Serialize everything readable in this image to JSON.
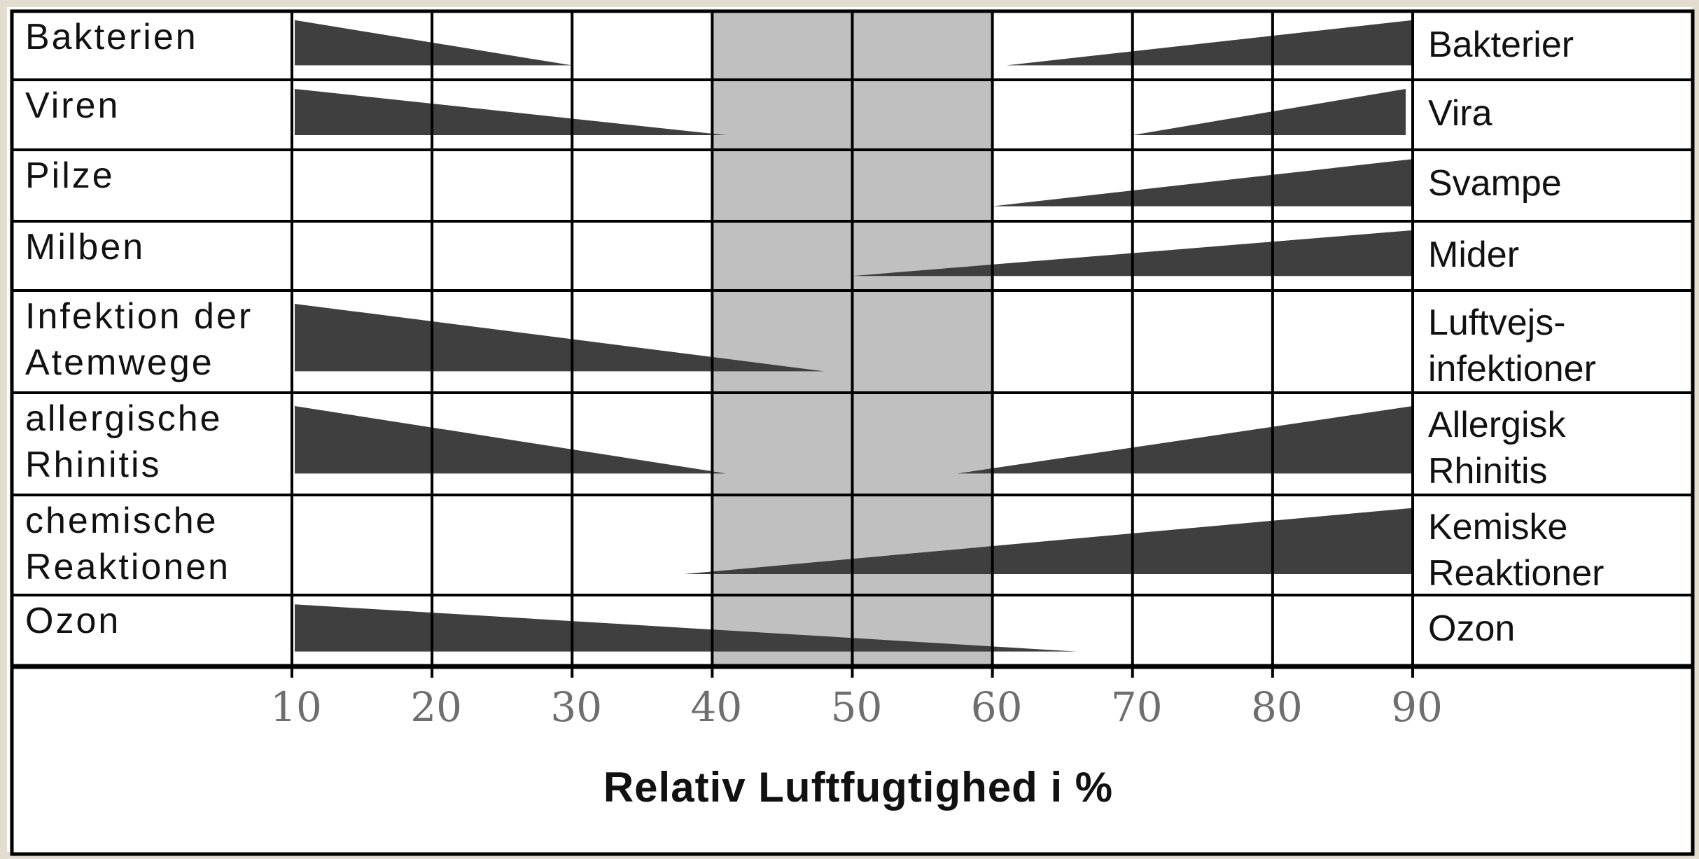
{
  "chart_data": {
    "type": "bar",
    "title": "",
    "xlabel": "Relativ Luftfugtighed i %",
    "ylabel": "",
    "xlim": [
      10,
      90
    ],
    "x_ticks": [
      {
        "value": 10,
        "label": "10"
      },
      {
        "value": 20,
        "label": "20"
      },
      {
        "value": 30,
        "label": "30"
      },
      {
        "value": 40,
        "label": "40"
      },
      {
        "value": 50,
        "label": "50"
      },
      {
        "value": 60,
        "label": "60"
      },
      {
        "value": 70,
        "label": "70"
      },
      {
        "value": 80,
        "label": "80"
      },
      {
        "value": 90,
        "label": "90"
      }
    ],
    "optimal_range": [
      40,
      60
    ],
    "grid": true,
    "colors": {
      "wedge": "#3f3f3f",
      "optimal_band": "#c0c0c0",
      "grid": "#000000",
      "tick_label": "#6e6e6e"
    },
    "rows": [
      {
        "label_de": [
          "Bakterien"
        ],
        "label_da": [
          "Bakterier"
        ],
        "low": {
          "from": 10,
          "to": 30
        },
        "high": {
          "from": 61,
          "to": 90
        }
      },
      {
        "label_de": [
          "Viren"
        ],
        "label_da": [
          "Vira"
        ],
        "low": {
          "from": 10,
          "to": 41
        },
        "high": {
          "from": 70,
          "to": 89.5
        }
      },
      {
        "label_de": [
          "Pilze"
        ],
        "label_da": [
          "Svampe"
        ],
        "low": null,
        "high": {
          "from": 60,
          "to": 90
        }
      },
      {
        "label_de": [
          "Milben"
        ],
        "label_da": [
          "Mider"
        ],
        "low": null,
        "high": {
          "from": 50,
          "to": 90
        }
      },
      {
        "label_de": [
          "Infektion der",
          "Atemwege"
        ],
        "label_da": [
          "Luftvejs-",
          "infektioner"
        ],
        "low": {
          "from": 10,
          "to": 48
        },
        "high": null
      },
      {
        "label_de": [
          "allergische",
          "Rhinitis"
        ],
        "label_da": [
          "Allergisk",
          "Rhinitis"
        ],
        "low": {
          "from": 10,
          "to": 41
        },
        "high": {
          "from": 57.5,
          "to": 90
        }
      },
      {
        "label_de": [
          "chemische",
          "Reaktionen"
        ],
        "label_da": [
          "Kemiske",
          "Reaktioner"
        ],
        "low": null,
        "high": {
          "from": 38,
          "to": 90
        }
      },
      {
        "label_de": [
          "Ozon"
        ],
        "label_da": [
          "Ozon"
        ],
        "low": {
          "from": 10,
          "to": 66
        },
        "high": null
      }
    ]
  }
}
